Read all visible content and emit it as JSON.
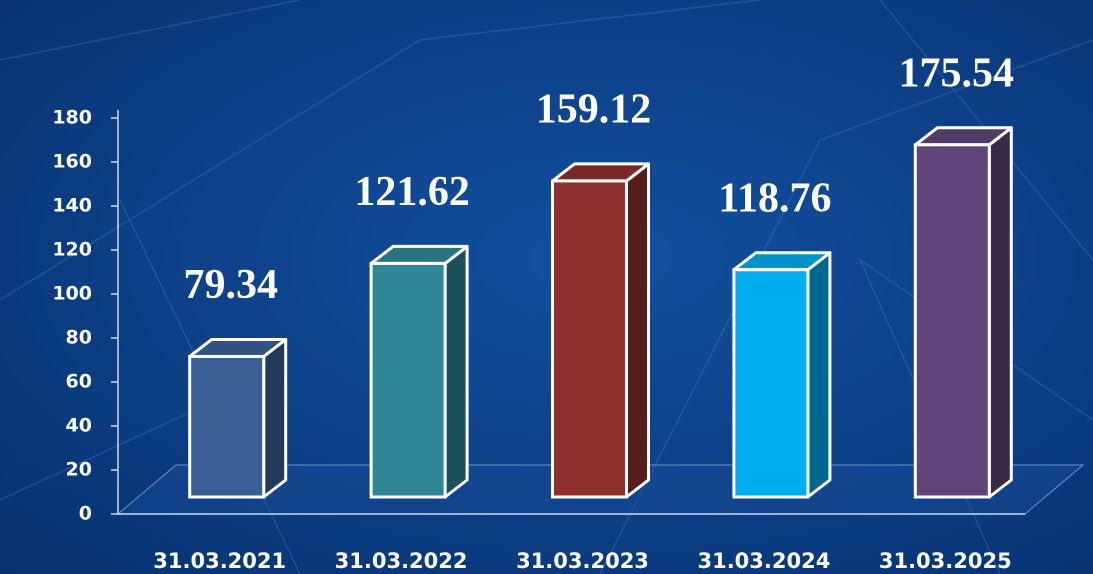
{
  "chart_data": {
    "type": "bar",
    "categories": [
      "31.03.2021",
      "31.03.2022",
      "31.03.2023",
      "31.03.2024",
      "31.03.2025"
    ],
    "values": [
      79.34,
      121.62,
      159.12,
      118.76,
      175.54
    ],
    "colors": [
      "#3a5f96",
      "#2f8796",
      "#8e3030",
      "#00aeef",
      "#5f4579"
    ],
    "ylim": [
      0,
      180
    ],
    "yticks": [
      0,
      20,
      40,
      60,
      80,
      100,
      120,
      140,
      160,
      180
    ],
    "grid": false
  }
}
